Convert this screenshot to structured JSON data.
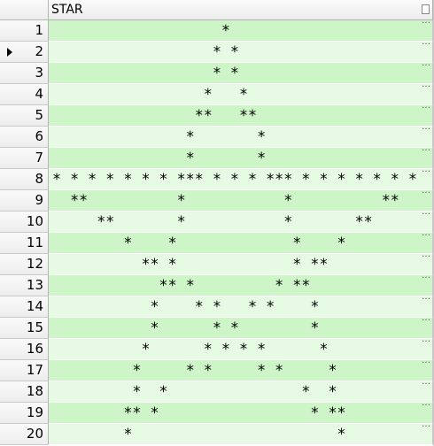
{
  "grid": {
    "column_header": "STAR",
    "current_row": 2,
    "cell_overflow_indicator": "…",
    "rows": [
      {
        "num": "1",
        "star": "                   *"
      },
      {
        "num": "2",
        "star": "                  * *"
      },
      {
        "num": "3",
        "star": "                  * *"
      },
      {
        "num": "4",
        "star": "                 *   *"
      },
      {
        "num": "5",
        "star": "                **   **"
      },
      {
        "num": "6",
        "star": "               *       *"
      },
      {
        "num": "7",
        "star": "               *       *"
      },
      {
        "num": "8",
        "star": "* * * * * * * *** * * * *** * * * * * * *"
      },
      {
        "num": "9",
        "star": "  **          *           *          **"
      },
      {
        "num": "10",
        "star": "     **       *           *       **"
      },
      {
        "num": "11",
        "star": "        *    *             *    *"
      },
      {
        "num": "12",
        "star": "          ** *             * **"
      },
      {
        "num": "13",
        "star": "            ** *         * **"
      },
      {
        "num": "14",
        "star": "           *    * *   * *    *"
      },
      {
        "num": "15",
        "star": "           *      * *        *"
      },
      {
        "num": "16",
        "star": "          *      * * * *      *"
      },
      {
        "num": "17",
        "star": "         *     * *     * *     *"
      },
      {
        "num": "18",
        "star": "         *  *               *  *"
      },
      {
        "num": "19",
        "star": "        ** *                 * **"
      },
      {
        "num": "20",
        "star": "        *                       *"
      }
    ]
  }
}
